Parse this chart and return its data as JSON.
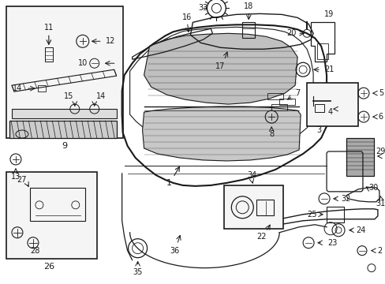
{
  "background_color": "#e8e8e8",
  "line_color": "#1a1a1a",
  "fig_width": 4.89,
  "fig_height": 3.6,
  "dpi": 100
}
